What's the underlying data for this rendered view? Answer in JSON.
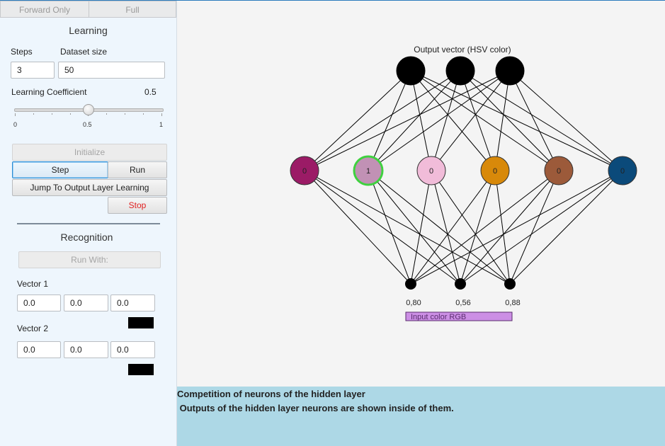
{
  "tabs": [
    "Forward Only",
    "Full"
  ],
  "learning": {
    "heading": "Learning",
    "steps_label": "Steps",
    "steps_value": "3",
    "dataset_label": "Dataset size",
    "dataset_value": "50",
    "coef_label": "Learning Coefficient",
    "coef_value": "0.5",
    "slider": {
      "min": "0",
      "mid": "0.5",
      "max": "1",
      "level": 0.5
    },
    "buttons": {
      "initialize": "Initialize",
      "step": "Step",
      "run": "Run",
      "jump": "Jump To Output Layer Learning",
      "stop": "Stop"
    }
  },
  "recognition": {
    "heading": "Recognition",
    "run_with": "Run With:",
    "vector1_label": "Vector 1",
    "vector1": [
      "0.0",
      "0.0",
      "0.0"
    ],
    "vector1_color": "#000000",
    "vector2_label": "Vector 2",
    "vector2": [
      "0.0",
      "0.0",
      "0.0"
    ],
    "vector2_color": "#000000"
  },
  "network": {
    "output_label": "Output vector (HSV color)",
    "output_colors": [
      "#000000",
      "#000000",
      "#000000"
    ],
    "hidden": [
      {
        "value": "0",
        "color": "#9b1b66",
        "winner": false
      },
      {
        "value": "1",
        "color": "#c191b5",
        "winner": true
      },
      {
        "value": "0",
        "color": "#f1bcd9",
        "winner": false
      },
      {
        "value": "0",
        "color": "#d8890a",
        "winner": false
      },
      {
        "value": "0",
        "color": "#9c5a3a",
        "winner": false
      },
      {
        "value": "0",
        "color": "#0b4a7a",
        "winner": false
      }
    ],
    "winner_ring": "#3fd13f",
    "inputs": [
      "0,80",
      "0,56",
      "0,88"
    ],
    "input_label": "Input color RGB",
    "input_color": "#cc8fe5"
  },
  "info": {
    "line1": "Competition of neurons of the hidden layer",
    "line2": " Outputs of the hidden layer neurons are shown inside of them."
  }
}
